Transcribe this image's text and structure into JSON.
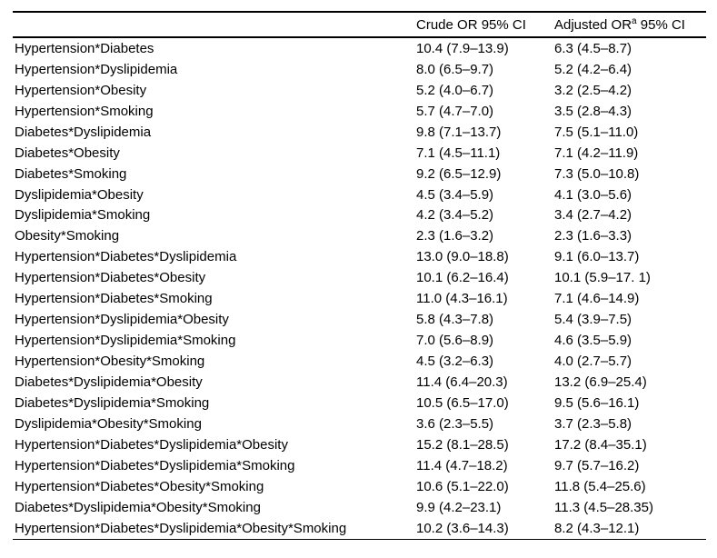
{
  "page": {
    "background": "#ffffff",
    "text_color": "#000000",
    "rule_color": "#000000"
  },
  "table": {
    "headers": {
      "factor": "",
      "crude": "Crude OR 95% CI",
      "adjusted_pre": "Adjusted OR",
      "adjusted_sup": "a",
      "adjusted_post": " 95% CI"
    },
    "rows": [
      {
        "label": "Hypertension*Diabetes",
        "crude": "10.4 (7.9–13.9)",
        "adjusted": "6.3 (4.5–8.7)"
      },
      {
        "label": "Hypertension*Dyslipidemia",
        "crude": "8.0 (6.5–9.7)",
        "adjusted": "5.2 (4.2–6.4)"
      },
      {
        "label": "Hypertension*Obesity",
        "crude": "5.2 (4.0–6.7)",
        "adjusted": "3.2 (2.5–4.2)"
      },
      {
        "label": "Hypertension*Smoking",
        "crude": "5.7 (4.7–7.0)",
        "adjusted": "3.5 (2.8–4.3)"
      },
      {
        "label": "Diabetes*Dyslipidemia",
        "crude": "9.8 (7.1–13.7)",
        "adjusted": "7.5 (5.1–11.0)"
      },
      {
        "label": "Diabetes*Obesity",
        "crude": "7.1 (4.5–11.1)",
        "adjusted": "7.1 (4.2–11.9)"
      },
      {
        "label": "Diabetes*Smoking",
        "crude": "9.2 (6.5–12.9)",
        "adjusted": "7.3 (5.0–10.8)"
      },
      {
        "label": "Dyslipidemia*Obesity",
        "crude": "4.5 (3.4–5.9)",
        "adjusted": "4.1 (3.0–5.6)"
      },
      {
        "label": "Dyslipidemia*Smoking",
        "crude": "4.2 (3.4–5.2)",
        "adjusted": "3.4 (2.7–4.2)"
      },
      {
        "label": "Obesity*Smoking",
        "crude": "2.3 (1.6–3.2)",
        "adjusted": "2.3 (1.6–3.3)"
      },
      {
        "label": "Hypertension*Diabetes*Dyslipidemia",
        "crude": "13.0 (9.0–18.8)",
        "adjusted": "9.1 (6.0–13.7)"
      },
      {
        "label": "Hypertension*Diabetes*Obesity",
        "crude": "10.1 (6.2–16.4)",
        "adjusted": "10.1 (5.9–17. 1)"
      },
      {
        "label": "Hypertension*Diabetes*Smoking",
        "crude": "11.0 (4.3–16.1)",
        "adjusted": "7.1 (4.6–14.9)"
      },
      {
        "label": "Hypertension*Dyslipidemia*Obesity",
        "crude": "5.8 (4.3–7.8)",
        "adjusted": "5.4 (3.9–7.5)"
      },
      {
        "label": "Hypertension*Dyslipidemia*Smoking",
        "crude": "7.0 (5.6–8.9)",
        "adjusted": "4.6 (3.5–5.9)"
      },
      {
        "label": "Hypertension*Obesity*Smoking",
        "crude": "4.5 (3.2–6.3)",
        "adjusted": "4.0 (2.7–5.7)"
      },
      {
        "label": "Diabetes*Dyslipidemia*Obesity",
        "crude": "11.4 (6.4–20.3)",
        "adjusted": "13.2 (6.9–25.4)"
      },
      {
        "label": "Diabetes*Dyslipidemia*Smoking",
        "crude": "10.5 (6.5–17.0)",
        "adjusted": "9.5 (5.6–16.1)"
      },
      {
        "label": "Dyslipidemia*Obesity*Smoking",
        "crude": "3.6 (2.3–5.5)",
        "adjusted": "3.7 (2.3–5.8)"
      },
      {
        "label": "Hypertension*Diabetes*Dyslipidemia*Obesity",
        "crude": "15.2 (8.1–28.5)",
        "adjusted": "17.2 (8.4–35.1)"
      },
      {
        "label": "Hypertension*Diabetes*Dyslipidemia*Smoking",
        "crude": "11.4 (4.7–18.2)",
        "adjusted": "9.7 (5.7–16.2)"
      },
      {
        "label": "Hypertension*Diabetes*Obesity*Smoking",
        "crude": "10.6 (5.1–22.0)",
        "adjusted": "11.8 (5.4–25.6)"
      },
      {
        "label": "Diabetes*Dyslipidemia*Obesity*Smoking",
        "crude": "9.9 (4.2–23.1)",
        "adjusted": "11.3 (4.5–28.35)"
      },
      {
        "label": "Hypertension*Diabetes*Dyslipidemia*Obesity*Smoking",
        "crude": "10.2 (3.6–14.3)",
        "adjusted": "8.2 (4.3–12.1)"
      }
    ]
  }
}
